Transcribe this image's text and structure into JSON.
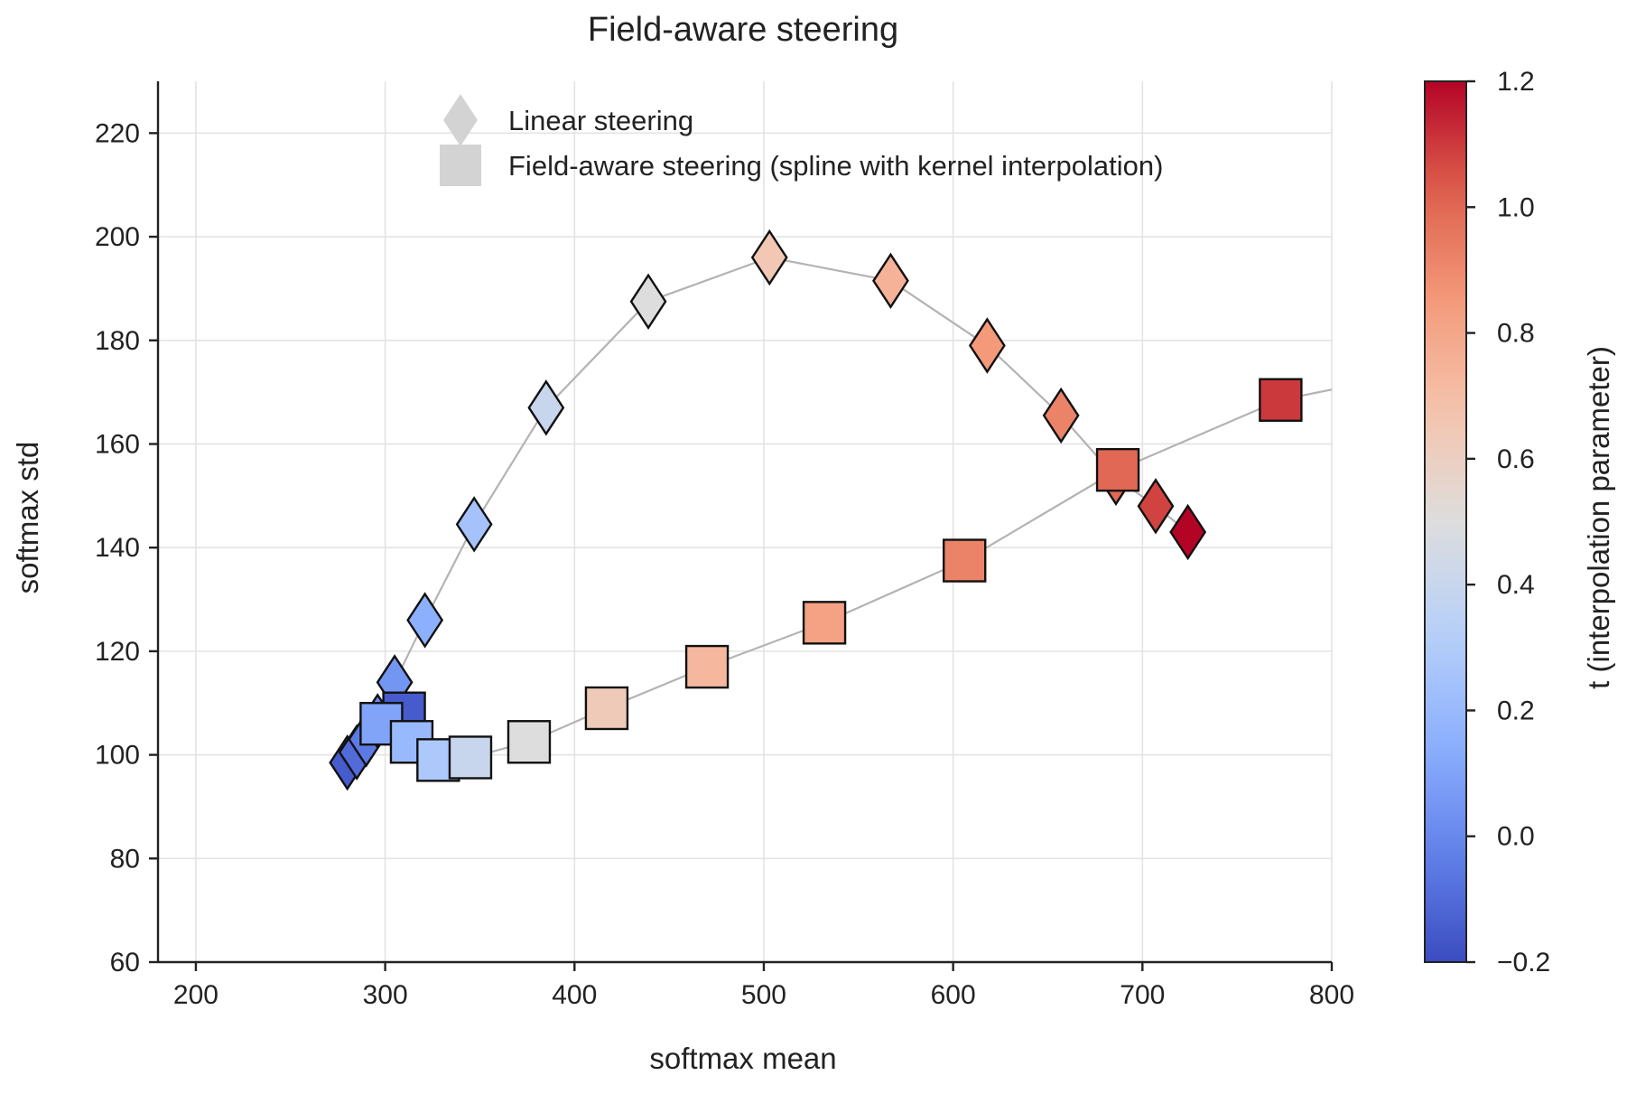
{
  "chart_data": {
    "type": "scatter",
    "title": "Field-aware steering",
    "xlabel": "softmax mean",
    "ylabel": "softmax std",
    "xlim": [
      180,
      800
    ],
    "ylim": [
      60,
      230
    ],
    "x_ticks": [
      200,
      300,
      400,
      500,
      600,
      700,
      800
    ],
    "y_ticks": [
      60,
      80,
      100,
      120,
      140,
      160,
      180,
      200,
      220
    ],
    "grid": true,
    "legend_position": "top-center",
    "colorbar": {
      "label": "t (interpolation parameter)",
      "range": [
        -0.2,
        1.2
      ],
      "ticks": [
        -0.2,
        0.0,
        0.2,
        0.4,
        0.6,
        0.8,
        1.0,
        1.2
      ],
      "tick_labels": [
        "−0.2",
        "0.0",
        "0.2",
        "0.4",
        "0.6",
        "0.8",
        "1.0",
        "1.2"
      ],
      "colormap": "coolwarm"
    },
    "connector_color": "#b3b3b3",
    "series": [
      {
        "name": "Linear steering",
        "marker": "diamond",
        "legend_color": "#d3d3d3",
        "points": [
          {
            "x": 280,
            "y": 98.5,
            "t": -0.15
          },
          {
            "x": 285,
            "y": 100.5,
            "t": -0.1
          },
          {
            "x": 290,
            "y": 103,
            "t": -0.05
          },
          {
            "x": 296,
            "y": 106.5,
            "t": 0.0
          },
          {
            "x": 305,
            "y": 114,
            "t": 0.05
          },
          {
            "x": 321,
            "y": 126,
            "t": 0.15
          },
          {
            "x": 347,
            "y": 144.5,
            "t": 0.25
          },
          {
            "x": 385,
            "y": 167,
            "t": 0.4
          },
          {
            "x": 439,
            "y": 187.5,
            "t": 0.5
          },
          {
            "x": 503,
            "y": 196,
            "t": 0.65
          },
          {
            "x": 567,
            "y": 191.5,
            "t": 0.75
          },
          {
            "x": 618,
            "y": 179,
            "t": 0.85
          },
          {
            "x": 657,
            "y": 165.5,
            "t": 0.92
          },
          {
            "x": 686,
            "y": 153.5,
            "t": 1.0
          },
          {
            "x": 707,
            "y": 148,
            "t": 1.08
          },
          {
            "x": 724,
            "y": 143,
            "t": 1.2
          }
        ]
      },
      {
        "name": "Field-aware steering (spline with kernel interpolation)",
        "marker": "square",
        "legend_color": "#d3d3d3",
        "points": [
          {
            "x": 310,
            "y": 108,
            "t": -0.15
          },
          {
            "x": 298,
            "y": 106,
            "t": 0.1
          },
          {
            "x": 314,
            "y": 102.5,
            "t": 0.2
          },
          {
            "x": 328,
            "y": 99,
            "t": 0.28
          },
          {
            "x": 345,
            "y": 99.5,
            "t": 0.4
          },
          {
            "x": 376,
            "y": 102.5,
            "t": 0.5
          },
          {
            "x": 417,
            "y": 109,
            "t": 0.63
          },
          {
            "x": 470,
            "y": 117,
            "t": 0.73
          },
          {
            "x": 532,
            "y": 125.5,
            "t": 0.82
          },
          {
            "x": 606,
            "y": 137.5,
            "t": 0.92
          },
          {
            "x": 687,
            "y": 155,
            "t": 1.0
          },
          {
            "x": 773,
            "y": 168.5,
            "t": 1.1
          }
        ],
        "line_extends_to": {
          "x": 800,
          "y": 170.5
        }
      }
    ]
  }
}
